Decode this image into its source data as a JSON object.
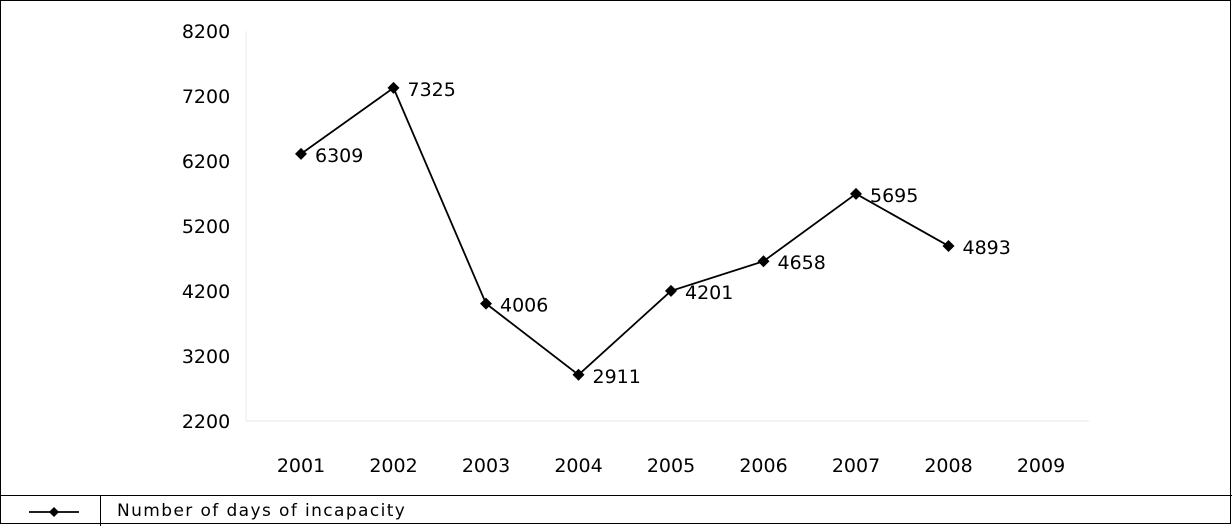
{
  "chart_data": {
    "type": "line",
    "title": "",
    "xlabel": "",
    "ylabel": "",
    "categories": [
      "2001",
      "2002",
      "2003",
      "2004",
      "2005",
      "2006",
      "2007",
      "2008",
      "2009"
    ],
    "y_ticks": [
      "8200",
      "7200",
      "6200",
      "5200",
      "4200",
      "3200",
      "2200"
    ],
    "ylim": [
      2200,
      8200
    ],
    "grid": false,
    "legend_position": "bottom",
    "series": [
      {
        "name": "Number of days of incapacity",
        "x": [
          "2001",
          "2002",
          "2003",
          "2004",
          "2005",
          "2006",
          "2007",
          "2008"
        ],
        "values": [
          6309,
          7325,
          4006,
          2911,
          4201,
          4658,
          5695,
          4893
        ],
        "labels": [
          "6309",
          "7325",
          "4006",
          "2911",
          "4201",
          "4658",
          "5695",
          "4893"
        ],
        "color": "#000000",
        "marker": "diamond"
      }
    ]
  }
}
